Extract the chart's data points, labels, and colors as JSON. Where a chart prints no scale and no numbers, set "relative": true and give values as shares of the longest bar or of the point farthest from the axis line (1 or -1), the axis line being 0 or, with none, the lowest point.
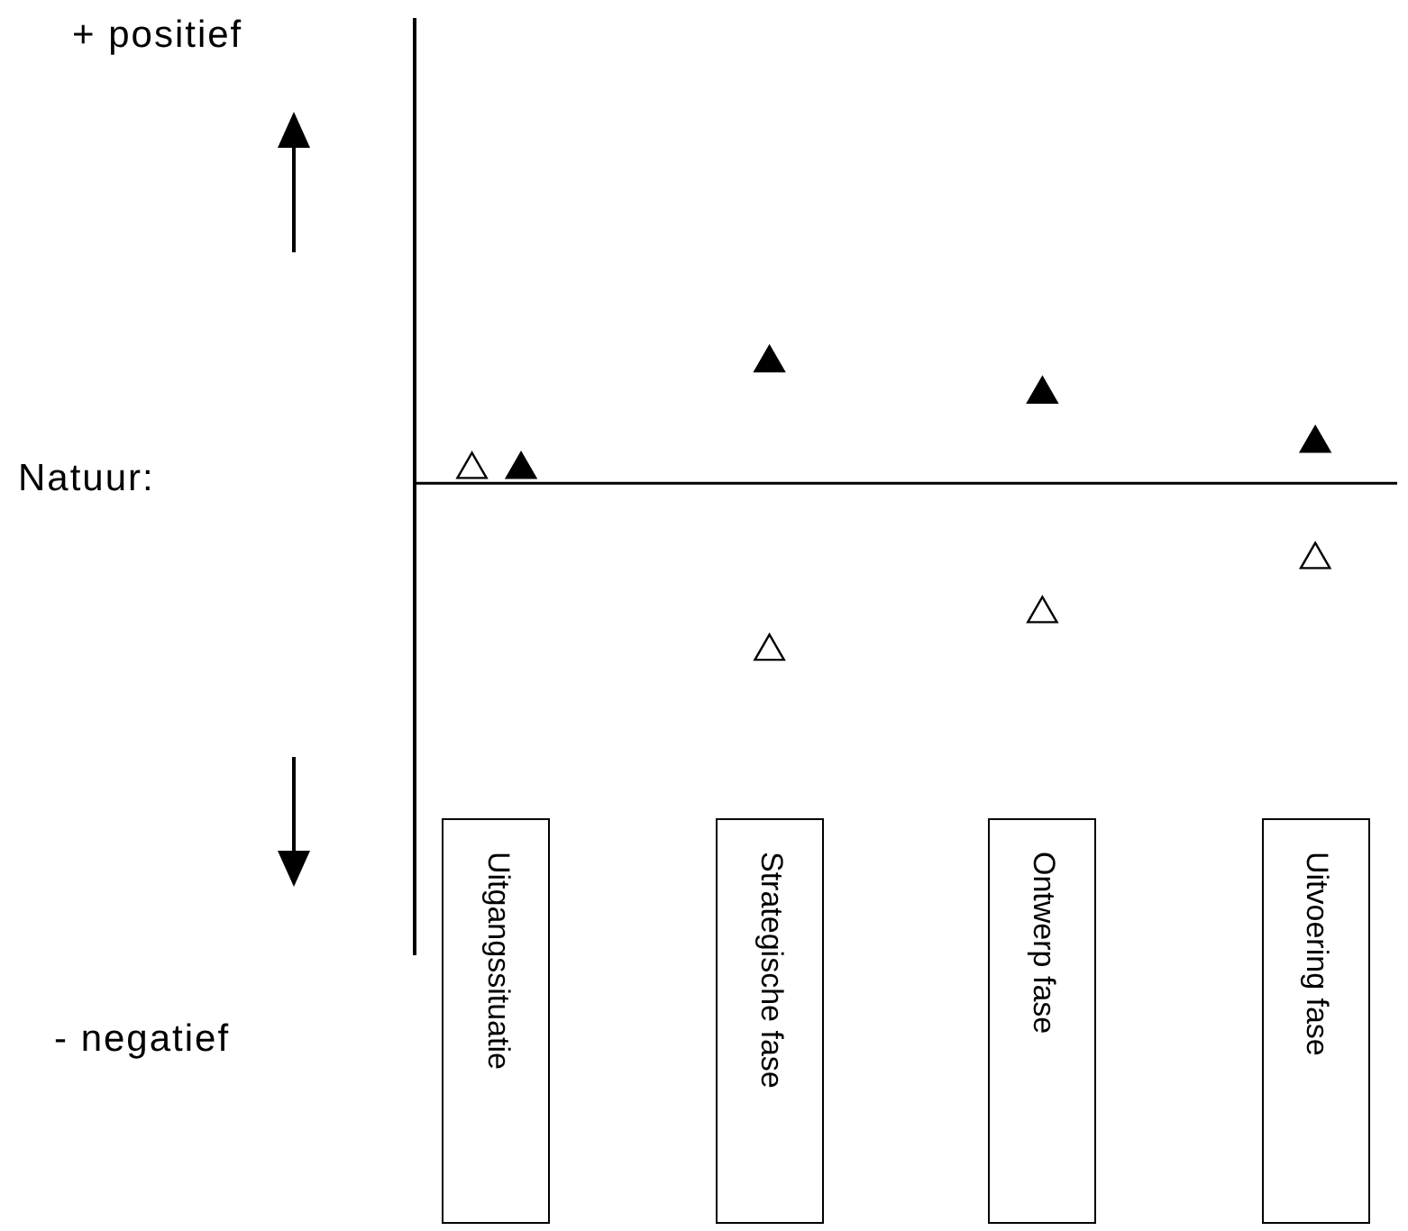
{
  "chart_data": {
    "type": "scatter",
    "relative": true,
    "annotations": [
      "+ positief",
      "Natuur:",
      "- negatief"
    ],
    "marker": "triangle",
    "categories": [
      "Uitgangssituatie",
      "Strategische fase",
      "Ontwerp fase",
      "Uitvoering fase"
    ],
    "series": [
      {
        "color": "#ffffff",
        "values": [
          0.11,
          -1,
          -0.77,
          -0.44
        ]
      },
      {
        "color": "#000000",
        "values": [
          0.11,
          0.76,
          0.57,
          0.27
        ]
      }
    ]
  }
}
